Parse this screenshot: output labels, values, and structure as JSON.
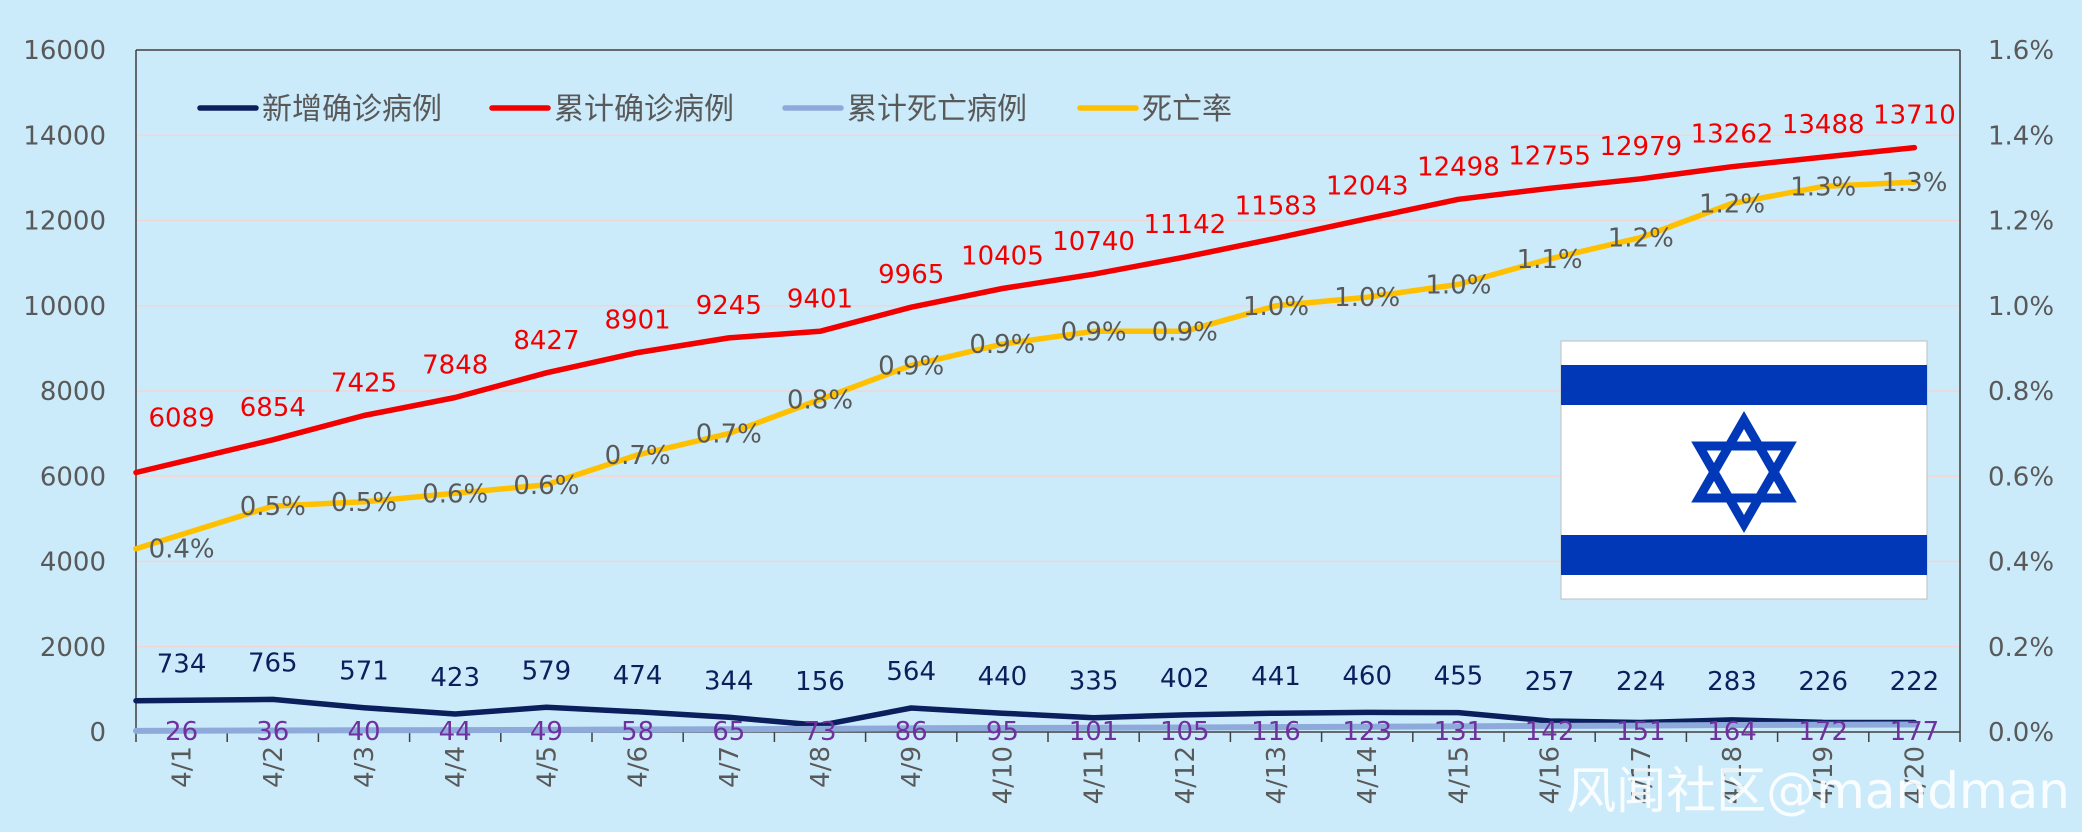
{
  "chart_data": {
    "type": "line",
    "title": "",
    "xlabel": "",
    "ylabel": "",
    "categories": [
      "4/1",
      "4/2",
      "4/3",
      "4/4",
      "4/5",
      "4/6",
      "4/7",
      "4/8",
      "4/9",
      "4/10",
      "4/11",
      "4/12",
      "4/13",
      "4/14",
      "4/15",
      "4/16",
      "4/17",
      "4/18",
      "4/19",
      "4/20"
    ],
    "ylim": [
      0,
      16000
    ],
    "y_ticks": [
      0,
      2000,
      4000,
      6000,
      8000,
      10000,
      12000,
      14000,
      16000
    ],
    "y2lim": [
      0,
      1.6
    ],
    "y2_ticks": [
      "0.0%",
      "0.2%",
      "0.4%",
      "0.6%",
      "0.8%",
      "1.0%",
      "1.2%",
      "1.4%",
      "1.6%"
    ],
    "grid": true,
    "legend_position": "top-left",
    "series": [
      {
        "name": "新增确诊病例",
        "axis": "left",
        "color": "#0A1F5C",
        "label_color": "#0A1F5C",
        "values": [
          734,
          765,
          571,
          423,
          579,
          474,
          344,
          156,
          564,
          440,
          335,
          402,
          441,
          460,
          455,
          257,
          224,
          283,
          226,
          222
        ],
        "labels": [
          "734",
          "765",
          "571",
          "423",
          "579",
          "474",
          "344",
          "156",
          "564",
          "440",
          "335",
          "402",
          "441",
          "460",
          "455",
          "257",
          "224",
          "283",
          "226",
          "222"
        ]
      },
      {
        "name": "累计确诊病例",
        "axis": "left",
        "color": "#F20000",
        "label_color": "#F20000",
        "values": [
          6089,
          6854,
          7425,
          7848,
          8427,
          8901,
          9245,
          9401,
          9965,
          10405,
          10740,
          11142,
          11583,
          12043,
          12498,
          12755,
          12979,
          13262,
          13488,
          13710
        ],
        "labels": [
          "6089",
          "6854",
          "7425",
          "7848",
          "8427",
          "8901",
          "9245",
          "9401",
          "9965",
          "10405",
          "10740",
          "11142",
          "11583",
          "12043",
          "12498",
          "12755",
          "12979",
          "13262",
          "13488",
          "13710"
        ]
      },
      {
        "name": "累计死亡病例",
        "axis": "left",
        "color": "#8EAADB",
        "label_color": "#7030A0",
        "values": [
          26,
          36,
          40,
          44,
          49,
          58,
          65,
          73,
          86,
          95,
          101,
          105,
          116,
          123,
          131,
          142,
          151,
          164,
          172,
          177
        ],
        "labels": [
          "26",
          "36",
          "40",
          "44",
          "49",
          "58",
          "65",
          "73",
          "86",
          "95",
          "101",
          "105",
          "116",
          "123",
          "131",
          "142",
          "151",
          "164",
          "172",
          "177"
        ]
      },
      {
        "name": "死亡率",
        "axis": "right",
        "color": "#FFC000",
        "label_color": "#595959",
        "values": [
          0.43,
          0.53,
          0.54,
          0.56,
          0.58,
          0.65,
          0.7,
          0.78,
          0.86,
          0.91,
          0.94,
          0.94,
          1.0,
          1.02,
          1.05,
          1.11,
          1.16,
          1.24,
          1.28,
          1.29
        ],
        "labels": [
          "0.4%",
          "0.5%",
          "0.5%",
          "0.6%",
          "0.6%",
          "0.7%",
          "0.7%",
          "0.8%",
          "0.9%",
          "0.9%",
          "0.9%",
          "0.9%",
          "1.0%",
          "1.0%",
          "1.0%",
          "1.1%",
          "1.2%",
          "1.2%",
          "1.3%",
          "1.3%"
        ]
      }
    ]
  },
  "flag": {
    "stripe_color": "#0038B8",
    "background": "#FFFFFF"
  },
  "watermark": "风闻社区@mandman"
}
